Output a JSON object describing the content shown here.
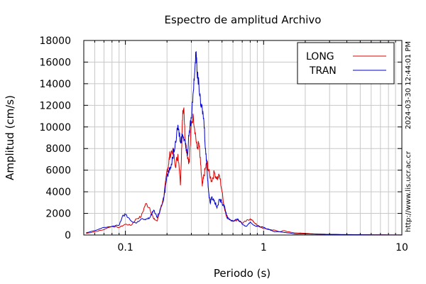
{
  "chart_data": {
    "type": "line",
    "title": "Espectro de amplitud Archivo",
    "xlabel": "Periodo (s)",
    "ylabel": "Amplitud (cm/s)",
    "x_scale": "log",
    "xlim": [
      0.05,
      10
    ],
    "ylim": [
      0,
      18000
    ],
    "x_ticks": [
      0.1,
      1,
      10
    ],
    "x_tick_labels": [
      "0.1",
      "1",
      "10"
    ],
    "y_ticks": [
      0,
      2000,
      4000,
      6000,
      8000,
      10000,
      12000,
      14000,
      16000,
      18000
    ],
    "y_tick_labels": [
      "0",
      "2000",
      "4000",
      "6000",
      "8000",
      "10000",
      "12000",
      "14000",
      "16000",
      "18000"
    ],
    "grid": true,
    "legend_position": "top-right",
    "side_text": [
      "2024-03-30 12:44:01 PM",
      "http://www.lis.ucr.ac.cr"
    ],
    "series": [
      {
        "name": "LONG",
        "color": "#dd0000",
        "x": [
          0.052,
          0.06,
          0.07,
          0.075,
          0.08,
          0.09,
          0.1,
          0.11,
          0.12,
          0.13,
          0.14,
          0.15,
          0.16,
          0.17,
          0.18,
          0.19,
          0.2,
          0.205,
          0.21,
          0.22,
          0.23,
          0.24,
          0.25,
          0.255,
          0.26,
          0.265,
          0.27,
          0.28,
          0.29,
          0.3,
          0.31,
          0.32,
          0.33,
          0.34,
          0.35,
          0.36,
          0.37,
          0.38,
          0.39,
          0.4,
          0.42,
          0.44,
          0.46,
          0.48,
          0.5,
          0.52,
          0.54,
          0.56,
          0.6,
          0.65,
          0.7,
          0.75,
          0.8,
          0.85,
          0.9,
          1.0,
          1.1,
          1.2,
          1.3,
          1.4,
          1.5,
          1.7,
          2.0,
          2.5,
          3,
          4,
          5,
          6,
          8,
          10
        ],
        "y": [
          150,
          300,
          500,
          700,
          800,
          700,
          1000,
          900,
          1500,
          1700,
          2900,
          2500,
          1500,
          1300,
          2500,
          3500,
          6000,
          6500,
          7500,
          7900,
          6300,
          7500,
          4600,
          8000,
          11500,
          11800,
          9000,
          7500,
          6700,
          10300,
          11000,
          9500,
          8000,
          8500,
          6500,
          4500,
          5500,
          6200,
          6700,
          5900,
          5000,
          5800,
          5200,
          5500,
          4000,
          2500,
          1700,
          1500,
          1300,
          1400,
          1100,
          1300,
          1500,
          1200,
          900,
          600,
          500,
          450,
          300,
          400,
          300,
          200,
          150,
          80,
          60,
          40,
          30,
          20,
          10,
          10
        ]
      },
      {
        "name": "TRAN",
        "color": "#0000cc",
        "x": [
          0.052,
          0.06,
          0.07,
          0.08,
          0.09,
          0.095,
          0.1,
          0.11,
          0.12,
          0.13,
          0.14,
          0.15,
          0.16,
          0.17,
          0.18,
          0.19,
          0.2,
          0.21,
          0.22,
          0.23,
          0.24,
          0.25,
          0.26,
          0.27,
          0.28,
          0.29,
          0.3,
          0.31,
          0.32,
          0.325,
          0.33,
          0.34,
          0.35,
          0.36,
          0.37,
          0.38,
          0.39,
          0.4,
          0.41,
          0.42,
          0.44,
          0.46,
          0.48,
          0.5,
          0.52,
          0.55,
          0.6,
          0.65,
          0.7,
          0.75,
          0.8,
          0.85,
          0.9,
          1.0,
          1.1,
          1.2,
          1.3,
          1.4,
          1.5,
          1.7,
          2.0,
          2.5,
          3,
          4,
          5,
          6,
          8,
          10
        ],
        "y": [
          200,
          400,
          700,
          800,
          900,
          1700,
          1900,
          1300,
          1100,
          1500,
          1400,
          1600,
          2300,
          1600,
          2500,
          3500,
          5500,
          6000,
          7200,
          8700,
          10200,
          8600,
          9300,
          8800,
          7300,
          9600,
          10800,
          13300,
          16000,
          17000,
          15000,
          14000,
          12000,
          11700,
          10500,
          8000,
          6000,
          4000,
          3000,
          3500,
          3200,
          2500,
          3300,
          3000,
          2700,
          1500,
          1300,
          1500,
          1000,
          800,
          1200,
          900,
          800,
          700,
          500,
          300,
          300,
          250,
          200,
          100,
          100,
          80,
          60,
          40,
          30,
          20,
          10,
          10
        ]
      }
    ]
  }
}
